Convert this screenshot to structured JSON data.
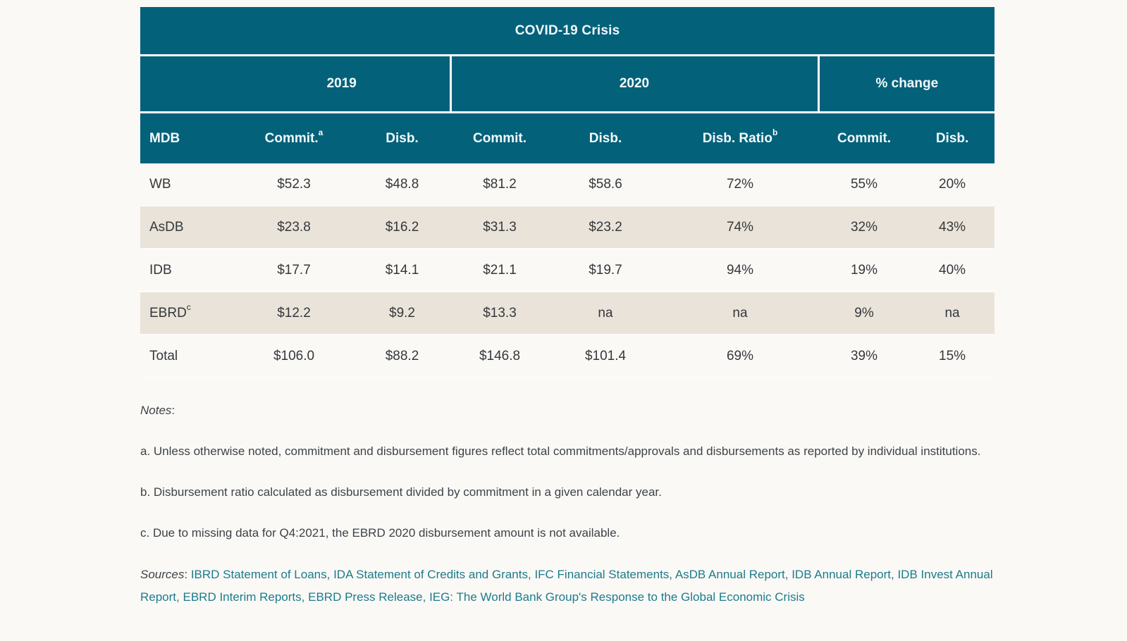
{
  "colors": {
    "teal": "#04617a",
    "beige": "#eae3d9",
    "pagebg": "#fbf9f5",
    "ink": "#34383c",
    "headtext": "#f2fafb",
    "notetext": "#3d4349",
    "link": "#1b7b8e"
  },
  "table": {
    "title": "COVID-19 Crisis",
    "groups": [
      {
        "label": "2019",
        "span": 2
      },
      {
        "label": "2020",
        "span": 3
      },
      {
        "label": "% change",
        "span": 2
      }
    ],
    "columns": [
      {
        "label": "MDB",
        "sup": ""
      },
      {
        "label": "Commit.",
        "sup": "a"
      },
      {
        "label": "Disb.",
        "sup": ""
      },
      {
        "label": "Commit.",
        "sup": ""
      },
      {
        "label": "Disb.",
        "sup": ""
      },
      {
        "label": "Disb. Ratio",
        "sup": "b"
      },
      {
        "label": "Commit.",
        "sup": ""
      },
      {
        "label": "Disb.",
        "sup": ""
      }
    ],
    "rows": [
      {
        "mdb": "WB",
        "sup": "",
        "values": [
          "$52.3",
          "$48.8",
          "$81.2",
          "$58.6",
          "72%",
          "55%",
          "20%"
        ]
      },
      {
        "mdb": "AsDB",
        "sup": "",
        "values": [
          "$23.8",
          "$16.2",
          "$31.3",
          "$23.2",
          "74%",
          "32%",
          "43%"
        ]
      },
      {
        "mdb": "IDB",
        "sup": "",
        "values": [
          "$17.7",
          "$14.1",
          "$21.1",
          "$19.7",
          "94%",
          "19%",
          "40%"
        ]
      },
      {
        "mdb": "EBRD",
        "sup": "c",
        "values": [
          "$12.2",
          "$9.2",
          "$13.3",
          "na",
          "na",
          "9%",
          "na"
        ]
      },
      {
        "mdb": "Total",
        "sup": "",
        "values": [
          "$106.0",
          "$88.2",
          "$146.8",
          "$101.4",
          "69%",
          "39%",
          "15%"
        ]
      }
    ]
  },
  "notes": {
    "label": "Notes",
    "colon": ":",
    "items": [
      "a. Unless otherwise noted, commitment and disbursement figures reflect total commitments/approvals and disbursements as reported by individual institutions.",
      "b. Disbursement ratio calculated as disbursement divided by commitment in a given calendar year.",
      "c. Due to missing data for Q4:2021, the EBRD 2020 disbursement amount is not available."
    ]
  },
  "sources": {
    "label": "Sources",
    "colon": ": ",
    "separator": ", ",
    "links": [
      "IBRD Statement of Loans",
      "IDA Statement of Credits and Grants",
      "IFC Financial Statements",
      "AsDB Annual Report",
      "IDB Annual Report",
      "IDB Invest Annual Report",
      "EBRD Interim Reports",
      "EBRD Press Release",
      "IEG: The World Bank Group's Response to the Global Economic Crisis"
    ]
  }
}
